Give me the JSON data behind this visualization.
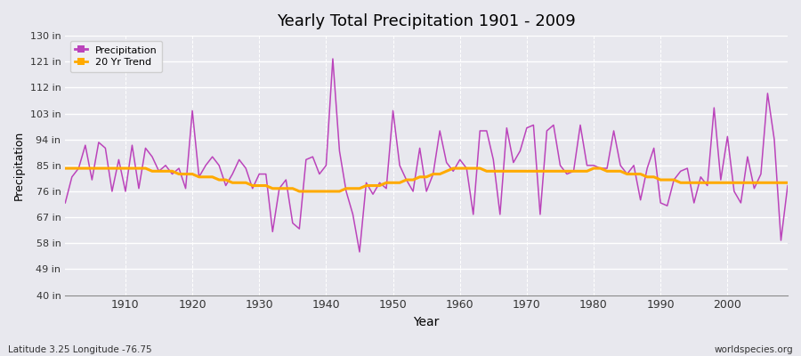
{
  "title": "Yearly Total Precipitation 1901 - 2009",
  "xlabel": "Year",
  "ylabel": "Precipitation",
  "subtitle_left": "Latitude 3.25 Longitude -76.75",
  "subtitle_right": "worldspecies.org",
  "ylim": [
    40,
    130
  ],
  "yticks": [
    40,
    49,
    58,
    67,
    76,
    85,
    94,
    103,
    112,
    121,
    130
  ],
  "ytick_labels": [
    "40 in",
    "49 in",
    "58 in",
    "67 in",
    "76 in",
    "85 in",
    "94 in",
    "103 in",
    "112 in",
    "121 in",
    "130 in"
  ],
  "xlim": [
    1901,
    2009
  ],
  "xticks": [
    1910,
    1920,
    1930,
    1940,
    1950,
    1960,
    1970,
    1980,
    1990,
    2000
  ],
  "precip_color": "#bb44bb",
  "trend_color": "#ffaa00",
  "bg_color": "#e8e8ee",
  "years": [
    1901,
    1902,
    1903,
    1904,
    1905,
    1906,
    1907,
    1908,
    1909,
    1910,
    1911,
    1912,
    1913,
    1914,
    1915,
    1916,
    1917,
    1918,
    1919,
    1920,
    1921,
    1922,
    1923,
    1924,
    1925,
    1926,
    1927,
    1928,
    1929,
    1930,
    1931,
    1932,
    1933,
    1934,
    1935,
    1936,
    1937,
    1938,
    1939,
    1940,
    1941,
    1942,
    1943,
    1944,
    1945,
    1946,
    1947,
    1948,
    1949,
    1950,
    1951,
    1952,
    1953,
    1954,
    1955,
    1956,
    1957,
    1958,
    1959,
    1960,
    1961,
    1962,
    1963,
    1964,
    1965,
    1966,
    1967,
    1968,
    1969,
    1970,
    1971,
    1972,
    1973,
    1974,
    1975,
    1976,
    1977,
    1978,
    1979,
    1980,
    1981,
    1982,
    1983,
    1984,
    1985,
    1986,
    1987,
    1988,
    1989,
    1990,
    1991,
    1992,
    1993,
    1994,
    1995,
    1996,
    1997,
    1998,
    1999,
    2000,
    2001,
    2002,
    2003,
    2004,
    2005,
    2006,
    2007,
    2008,
    2009
  ],
  "precip": [
    72,
    81,
    84,
    92,
    80,
    93,
    91,
    76,
    87,
    76,
    92,
    77,
    91,
    88,
    83,
    85,
    82,
    84,
    77,
    104,
    81,
    85,
    88,
    85,
    78,
    82,
    87,
    84,
    77,
    82,
    82,
    62,
    77,
    80,
    65,
    63,
    87,
    88,
    82,
    85,
    122,
    90,
    76,
    68,
    55,
    79,
    75,
    79,
    77,
    104,
    85,
    80,
    76,
    91,
    76,
    82,
    97,
    86,
    83,
    87,
    84,
    68,
    97,
    97,
    87,
    68,
    98,
    86,
    90,
    98,
    99,
    68,
    97,
    99,
    85,
    82,
    83,
    99,
    85,
    85,
    84,
    84,
    97,
    85,
    82,
    85,
    73,
    84,
    91,
    72,
    71,
    80,
    83,
    84,
    72,
    81,
    78,
    105,
    80,
    95,
    76,
    72,
    88,
    77,
    82,
    110,
    94,
    59,
    78
  ],
  "trend": [
    84,
    84,
    84,
    84,
    84,
    84,
    84,
    84,
    84,
    84,
    84,
    84,
    84,
    83,
    83,
    83,
    83,
    82,
    82,
    82,
    81,
    81,
    81,
    80,
    80,
    79,
    79,
    79,
    78,
    78,
    78,
    77,
    77,
    77,
    77,
    76,
    76,
    76,
    76,
    76,
    76,
    76,
    77,
    77,
    77,
    78,
    78,
    78,
    79,
    79,
    79,
    80,
    80,
    81,
    81,
    82,
    82,
    83,
    84,
    84,
    84,
    84,
    84,
    83,
    83,
    83,
    83,
    83,
    83,
    83,
    83,
    83,
    83,
    83,
    83,
    83,
    83,
    83,
    83,
    84,
    84,
    83,
    83,
    83,
    82,
    82,
    82,
    81,
    81,
    80,
    80,
    80,
    79,
    79,
    79,
    79,
    79,
    79,
    79,
    79,
    79,
    79,
    79,
    79,
    79,
    79,
    79,
    79,
    79
  ]
}
